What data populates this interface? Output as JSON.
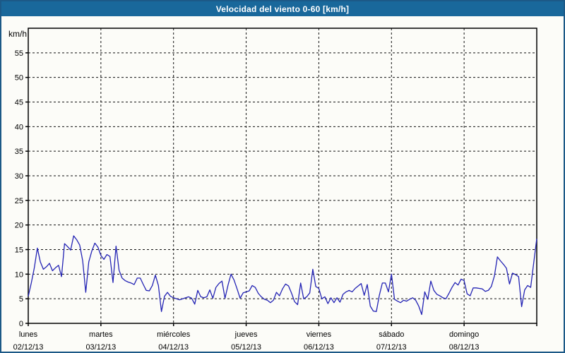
{
  "window": {
    "titlebar_color": "#19689b",
    "border_color": "#1c5987",
    "background_color": "#fcfcf8"
  },
  "chart_data": {
    "type": "line",
    "title": "Velocidad del viento 0-60 [km/h]",
    "ylabel": "km/h",
    "xlabel": "",
    "ylim": [
      0,
      60
    ],
    "y_ticks": [
      0,
      5,
      10,
      15,
      20,
      25,
      30,
      35,
      40,
      45,
      50,
      55
    ],
    "grid": "dashed",
    "legend_position": "none",
    "line_color": "#2323b4",
    "sampling": "hourly",
    "x_days": [
      {
        "name": "lunes",
        "date": "02/12/13"
      },
      {
        "name": "martes",
        "date": "03/12/13"
      },
      {
        "name": "miércoles",
        "date": "04/12/13"
      },
      {
        "name": "jueves",
        "date": "05/12/13"
      },
      {
        "name": "viernes",
        "date": "06/12/13"
      },
      {
        "name": "sábado",
        "date": "07/12/13"
      },
      {
        "name": "domingo",
        "date": "08/12/13"
      }
    ],
    "series": [
      {
        "name": "Velocidad del viento [km/h]",
        "values": [
          5.5,
          8.2,
          11.3,
          15.3,
          12.5,
          11.0,
          11.5,
          12.2,
          10.7,
          11.3,
          11.8,
          9.5,
          16.2,
          15.6,
          14.9,
          17.8,
          17.0,
          15.9,
          12.7,
          6.3,
          12.5,
          14.7,
          16.3,
          15.5,
          13.8,
          13.0,
          14.0,
          13.6,
          8.3,
          15.7,
          10.8,
          9.2,
          8.7,
          8.4,
          8.2,
          7.9,
          9.2,
          9.2,
          7.9,
          6.7,
          6.6,
          7.7,
          9.8,
          7.7,
          2.4,
          5.5,
          6.3,
          5.5,
          5.2,
          5.0,
          4.8,
          5.0,
          5.2,
          5.4,
          5.1,
          3.9,
          6.7,
          5.4,
          5.2,
          5.4,
          6.8,
          5.1,
          7.3,
          8.1,
          8.6,
          5.1,
          7.8,
          10.0,
          8.8,
          7.0,
          5.1,
          6.2,
          6.4,
          6.6,
          7.7,
          7.3,
          6.1,
          5.4,
          4.9,
          4.7,
          4.2,
          4.7,
          6.3,
          5.6,
          7.0,
          8.0,
          7.6,
          6.1,
          4.4,
          3.8,
          8.2,
          5.0,
          5.4,
          6.2,
          11.0,
          7.5,
          7.1,
          5.0,
          5.4,
          4.0,
          5.2,
          4.2,
          5.2,
          4.3,
          5.9,
          6.4,
          6.7,
          6.4,
          7.1,
          7.6,
          8.1,
          5.7,
          7.9,
          3.5,
          2.5,
          2.4,
          5.7,
          8.2,
          8.2,
          6.4,
          10.0,
          4.9,
          4.5,
          4.2,
          4.7,
          4.5,
          4.9,
          5.2,
          4.7,
          3.5,
          1.8,
          6.4,
          4.9,
          8.6,
          6.7,
          5.9,
          5.6,
          5.2,
          5.0,
          6.1,
          7.3,
          8.3,
          7.8,
          9.0,
          8.7,
          6.0,
          5.6,
          7.2,
          7.2,
          7.1,
          7.0,
          6.5,
          6.7,
          7.5,
          9.6,
          13.5,
          12.7,
          12.0,
          11.2,
          8.0,
          10.2,
          9.9,
          9.5,
          3.4,
          6.8,
          7.7,
          7.3,
          12.3,
          17.2
        ]
      }
    ]
  }
}
